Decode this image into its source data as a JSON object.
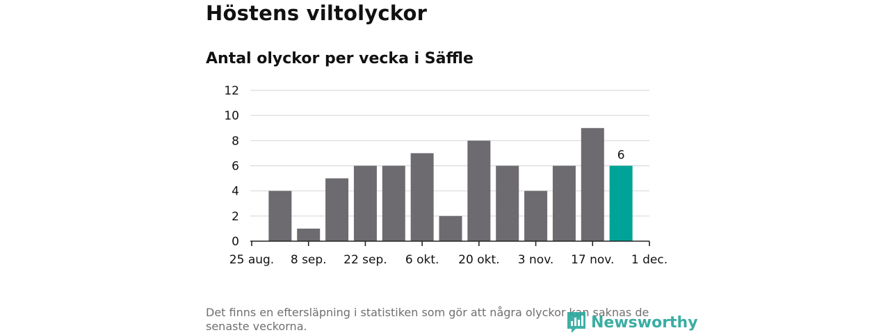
{
  "title": "Höstens viltolyckor",
  "chart_data": {
    "type": "bar",
    "title": "Antal olyckor per vecka i Säffle",
    "xlabel": "",
    "ylabel": "",
    "ylim": [
      0,
      12
    ],
    "y_ticks": [
      "0",
      "2",
      "4",
      "6",
      "8",
      "10",
      "12"
    ],
    "x_tick_labels": [
      "25 aug.",
      "8 sep.",
      "22 sep.",
      "6 okt.",
      "20 okt.",
      "3 nov.",
      "17 nov.",
      "1 dec."
    ],
    "values": [
      4,
      1,
      5,
      6,
      6,
      7,
      2,
      8,
      6,
      4,
      6,
      9,
      6
    ],
    "highlight_index": 12,
    "highlight_label": "6",
    "colors": {
      "bar": "#6d6b70",
      "highlight": "#00a398",
      "grid": "#d9d9d9",
      "axis": "#222222"
    }
  },
  "footnote": "Det finns en eftersläpning i statistiken som gör att några olyckor kan saknas de senaste veckorna.",
  "brand": {
    "name": "Newsworthy",
    "icon": "newsworthy-logo-icon"
  }
}
